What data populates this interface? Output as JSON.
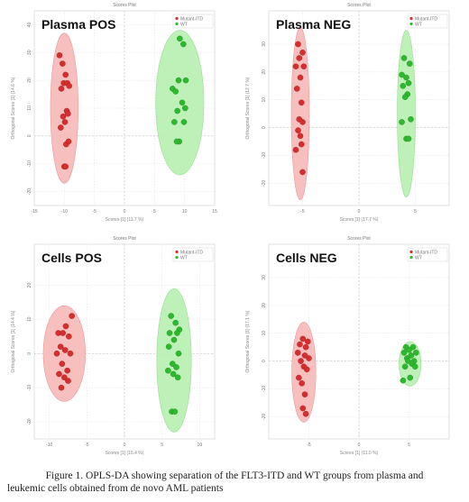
{
  "caption": {
    "line1": "Figure 1.  OPLS-DA showing separation of the FLT3-ITD and WT groups from plasma and",
    "line2": "leukemic cells obtained from de novo AML patients"
  },
  "colors": {
    "group1": "#d42f2f",
    "group1_fill": "#f7b8b8",
    "group2": "#2db82d",
    "group2_fill": "#b7f0b0",
    "grid": "#d9d9d9"
  },
  "chart_data": [
    {
      "type": "scatter",
      "title": "Scores Plot",
      "label": "Plasma POS",
      "xlabel": "Scores [1] (11.7 %)",
      "ylabel": "Orthogonal Scores [1] (14.6 %)",
      "legend": [
        "Mutant-ITD",
        "WT"
      ],
      "legend_position": "top-right",
      "xlim": [
        -15,
        15
      ],
      "ylim": [
        -25,
        45
      ],
      "xticks": [
        "-15",
        "-10",
        "-5",
        "0",
        "5",
        "10",
        "15"
      ],
      "yticks": [
        "-20",
        "-10",
        "0",
        "10",
        "20",
        "30",
        "40"
      ],
      "series": [
        {
          "name": "Mutant-ITD",
          "x": [
            -10.8,
            -10.3,
            -9.8,
            -10.1,
            -9.5,
            -9.2,
            -10.5,
            -9.6,
            -9.9,
            -10.2,
            -9.4,
            -10.6,
            -9.7,
            -9.3,
            -10.0,
            -9.8
          ],
          "y": [
            29,
            26,
            22,
            19,
            19,
            18,
            17,
            9,
            5,
            7,
            8,
            3,
            -3,
            -2,
            -11,
            -11
          ]
        },
        {
          "name": "WT",
          "x": [
            9.2,
            9.8,
            8.0,
            8.5,
            10.2,
            9.0,
            9.6,
            10.1,
            8.8,
            8.3,
            9.9,
            9.1,
            8.7
          ],
          "y": [
            35,
            33,
            17,
            16,
            20,
            20,
            12,
            10,
            9,
            5,
            5,
            -2,
            -2
          ]
        }
      ],
      "ellipses": [
        {
          "cx": -10,
          "cy": 10,
          "rx": 2.3,
          "ry": 27
        },
        {
          "cx": 9.2,
          "cy": 12,
          "rx": 4,
          "ry": 26
        }
      ]
    },
    {
      "type": "scatter",
      "title": "Scores Plot",
      "label": "Plasma NEG",
      "xlabel": "Scores [1] (17.7 %)",
      "ylabel": "Orthogonal Scores [1] (12.7 %)",
      "legend": [
        "Mutant-ITD",
        "WT"
      ],
      "legend_position": "top-right",
      "xlim": [
        -8,
        8
      ],
      "ylim": [
        -28,
        42
      ],
      "xticks": [
        "-5",
        "0",
        "5"
      ],
      "yticks": [
        "-20",
        "-10",
        "0",
        "10",
        "20",
        "30"
      ],
      "series": [
        {
          "name": "Mutant-ITD",
          "x": [
            -5.4,
            -5.0,
            -5.3,
            -5.6,
            -4.9,
            -5.2,
            -5.5,
            -5.1,
            -5.3,
            -5.0,
            -5.4,
            -5.2,
            -5.1,
            -5.6,
            -5.0
          ],
          "y": [
            30,
            27,
            25,
            22,
            22,
            18,
            14,
            9,
            3,
            2,
            -1,
            -3,
            -6,
            -8,
            -16
          ]
        },
        {
          "name": "WT",
          "x": [
            4.0,
            4.5,
            3.8,
            4.2,
            4.4,
            3.9,
            4.3,
            4.1,
            4.6,
            3.8,
            4.2,
            4.4
          ],
          "y": [
            25,
            23,
            19,
            18,
            16,
            15,
            12,
            11,
            3,
            2,
            -4,
            -4
          ]
        }
      ],
      "ellipses": [
        {
          "cx": -5.2,
          "cy": 5,
          "rx": 0.8,
          "ry": 31
        },
        {
          "cx": 4.2,
          "cy": 5,
          "rx": 0.8,
          "ry": 30
        }
      ]
    },
    {
      "type": "scatter",
      "title": "Scores Plot",
      "label": "Cells POS",
      "xlabel": "Scores [1] (15.4 %)",
      "ylabel": "Orthogonal Scores [1] (14.4 %)",
      "legend": [
        "Mutant-ITD",
        "WT"
      ],
      "legend_position": "top-right",
      "xlim": [
        -12,
        12
      ],
      "ylim": [
        -25,
        32
      ],
      "xticks": [
        "-10",
        "-5",
        "0",
        "5",
        "10"
      ],
      "yticks": [
        "-20",
        "-10",
        "0",
        "10",
        "20"
      ],
      "series": [
        {
          "name": "Mutant-ITD",
          "x": [
            -7.0,
            -7.8,
            -8.8,
            -8.2,
            -7.4,
            -8.5,
            -7.9,
            -9.0,
            -7.2,
            -8.3,
            -7.6,
            -8.7,
            -8.0,
            -7.5,
            -8.4
          ],
          "y": [
            11,
            8,
            6,
            6,
            5,
            2,
            1,
            0,
            0,
            -3,
            -5,
            -6,
            -7,
            -8,
            -10
          ]
        },
        {
          "name": "WT",
          "x": [
            6.2,
            6.8,
            7.3,
            6.0,
            7.0,
            6.6,
            5.9,
            7.2,
            6.4,
            6.9,
            5.8,
            6.5,
            7.1,
            6.3,
            6.7
          ],
          "y": [
            11,
            9,
            7,
            6,
            6,
            4,
            2,
            0,
            -3,
            -4,
            -5,
            -6,
            -7,
            -17,
            -17
          ]
        }
      ],
      "ellipses": [
        {
          "cx": -8,
          "cy": 0,
          "rx": 2.8,
          "ry": 14
        },
        {
          "cx": 6.6,
          "cy": -2,
          "rx": 2.3,
          "ry": 21
        }
      ]
    },
    {
      "type": "scatter",
      "title": "Scores Plot",
      "label": "Cells NEG",
      "xlabel": "Scores [1] (11.0 %)",
      "ylabel": "Orthogonal Scores [1] (17.1 %)",
      "legend": [
        "Mutant-ITD",
        "WT"
      ],
      "legend_position": "top-right",
      "xlim": [
        -9,
        9
      ],
      "ylim": [
        -28,
        42
      ],
      "xticks": [
        "-5",
        "0",
        "5"
      ],
      "yticks": [
        "-20",
        "-10",
        "0",
        "10",
        "20",
        "30"
      ],
      "series": [
        {
          "name": "Mutant-ITD",
          "x": [
            -5.6,
            -5.1,
            -5.9,
            -5.3,
            -6.1,
            -5.4,
            -5.0,
            -5.8,
            -5.5,
            -5.2,
            -6.0,
            -5.7,
            -5.4,
            -5.6,
            -5.3
          ],
          "y": [
            8,
            7,
            6,
            5,
            3,
            2,
            1,
            0,
            -2,
            -3,
            -6,
            -8,
            -12,
            -17,
            -19
          ]
        },
        {
          "name": "WT",
          "x": [
            4.7,
            5.4,
            5.0,
            4.5,
            5.7,
            5.2,
            4.8,
            5.5,
            4.9,
            5.3,
            4.6,
            5.6,
            5.1,
            4.4
          ],
          "y": [
            5,
            5,
            4,
            3,
            3,
            2,
            1,
            0,
            0,
            -1,
            -2,
            -2,
            -6,
            -7
          ]
        }
      ],
      "ellipses": [
        {
          "cx": -5.5,
          "cy": -4,
          "rx": 1.2,
          "ry": 18
        },
        {
          "cx": 5.1,
          "cy": -1,
          "rx": 1.1,
          "ry": 8
        }
      ]
    }
  ]
}
